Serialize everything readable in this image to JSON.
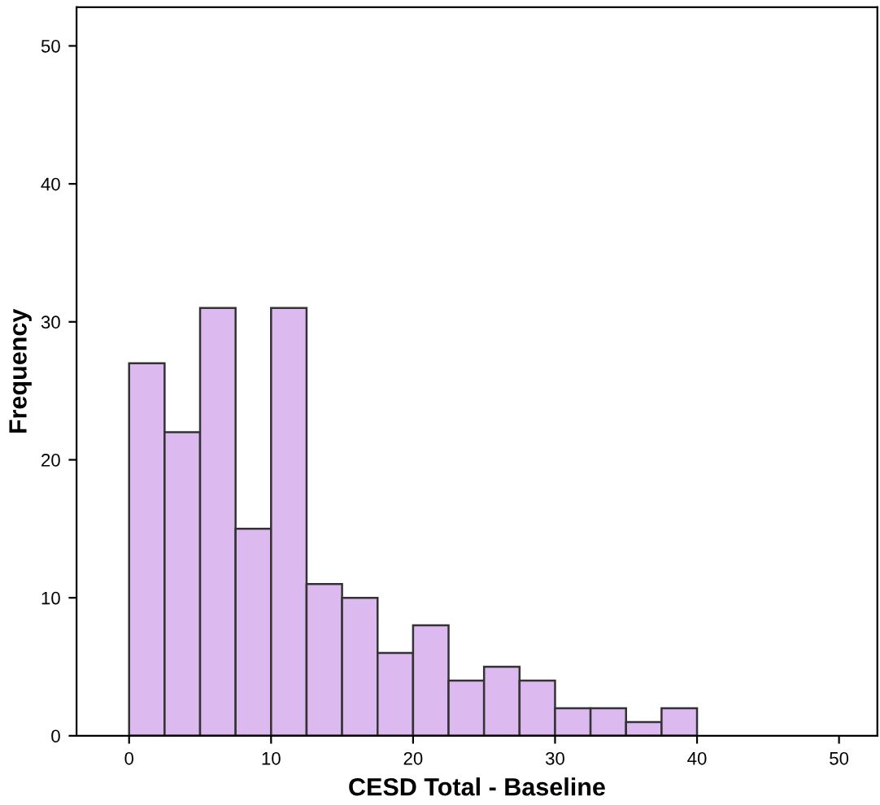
{
  "chart_data": {
    "type": "histogram",
    "xlabel": "CESD Total - Baseline",
    "ylabel": "Frequency",
    "bins": [
      0,
      2.5,
      5,
      7.5,
      10,
      12.5,
      15,
      17.5,
      20,
      22.5,
      25,
      27.5,
      30,
      32.5,
      35,
      37.5,
      40
    ],
    "values": [
      27,
      22,
      31,
      15,
      31,
      11,
      10,
      6,
      8,
      4,
      5,
      4,
      2,
      2,
      1,
      2
    ],
    "color": "#dcbaf0",
    "xlim": [
      -3.7,
      52.7
    ],
    "xticks": [
      0,
      10,
      20,
      30,
      40,
      50
    ],
    "ylim": [
      0,
      52.8
    ],
    "yticks": [
      0,
      10,
      20,
      30,
      40,
      50
    ],
    "grid": false,
    "legend": false
  }
}
